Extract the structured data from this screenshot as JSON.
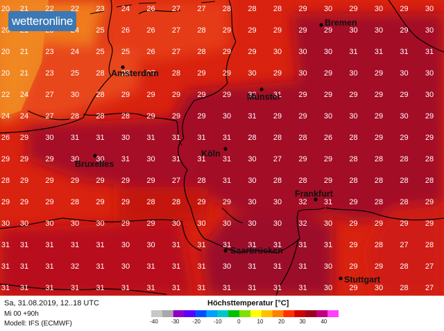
{
  "brand": {
    "logo_text": "wetteronline"
  },
  "map": {
    "columns_count": 18,
    "rows": [
      [
        "20",
        "21",
        "22",
        "22",
        "23",
        "24",
        "26",
        "27",
        "27",
        "28",
        "28",
        "28",
        "29",
        "30",
        "29",
        "30",
        "29",
        "30"
      ],
      [
        "20",
        "21",
        "23",
        "24",
        "25",
        "26",
        "26",
        "27",
        "28",
        "29",
        "29",
        "29",
        "29",
        "29",
        "30",
        "30",
        "29",
        "30"
      ],
      [
        "20",
        "21",
        "23",
        "24",
        "25",
        "25",
        "26",
        "27",
        "28",
        "29",
        "29",
        "30",
        "30",
        "30",
        "31",
        "31",
        "31",
        "31"
      ],
      [
        "20",
        "21",
        "23",
        "25",
        "28",
        "28",
        "27",
        "28",
        "29",
        "29",
        "30",
        "29",
        "30",
        "29",
        "30",
        "29",
        "30",
        "30"
      ],
      [
        "22",
        "24",
        "27",
        "30",
        "28",
        "29",
        "29",
        "29",
        "29",
        "29",
        "30",
        "31",
        "29",
        "29",
        "29",
        "29",
        "29",
        "30"
      ],
      [
        "24",
        "24",
        "27",
        "28",
        "28",
        "28",
        "29",
        "29",
        "29",
        "30",
        "31",
        "29",
        "29",
        "30",
        "30",
        "29",
        "30",
        "29"
      ],
      [
        "26",
        "29",
        "30",
        "31",
        "31",
        "30",
        "31",
        "31",
        "31",
        "31",
        "28",
        "28",
        "28",
        "26",
        "28",
        "29",
        "29",
        "29"
      ],
      [
        "29",
        "29",
        "29",
        "30",
        "30",
        "31",
        "30",
        "31",
        "31",
        "31",
        "30",
        "27",
        "29",
        "29",
        "28",
        "28",
        "28",
        "28"
      ],
      [
        "28",
        "29",
        "29",
        "29",
        "29",
        "29",
        "29",
        "27",
        "28",
        "31",
        "30",
        "28",
        "28",
        "29",
        "28",
        "28",
        "28",
        "28"
      ],
      [
        "29",
        "29",
        "29",
        "28",
        "29",
        "29",
        "28",
        "28",
        "29",
        "29",
        "30",
        "30",
        "32",
        "31",
        "29",
        "28",
        "28",
        "29"
      ],
      [
        "30",
        "30",
        "30",
        "30",
        "30",
        "29",
        "29",
        "30",
        "30",
        "30",
        "30",
        "30",
        "32",
        "30",
        "29",
        "29",
        "29",
        "29"
      ],
      [
        "31",
        "31",
        "31",
        "31",
        "31",
        "30",
        "30",
        "31",
        "31",
        "31",
        "31",
        "31",
        "31",
        "31",
        "29",
        "28",
        "27",
        "28"
      ],
      [
        "31",
        "31",
        "31",
        "32",
        "31",
        "30",
        "31",
        "31",
        "31",
        "30",
        "31",
        "31",
        "31",
        "30",
        "29",
        "29",
        "28",
        "27"
      ],
      [
        "31",
        "31",
        "31",
        "31",
        "31",
        "31",
        "31",
        "31",
        "31",
        "31",
        "31",
        "31",
        "31",
        "30",
        "29",
        "30",
        "28",
        "27"
      ]
    ],
    "cities": [
      {
        "name": "Bremen"
      },
      {
        "name": "Amsterdam"
      },
      {
        "name": "Münster"
      },
      {
        "name": "Köln"
      },
      {
        "name": "Bruxelles"
      },
      {
        "name": "Frankfurt"
      },
      {
        "name": "Saarbrücken"
      },
      {
        "name": "Stuttgart"
      }
    ]
  },
  "footer": {
    "date_line": "Sa, 31.08.2019, 12..18 UTC",
    "run_line": "Mi 00 +90h",
    "model_line": "Modell: IFS (ECMWF)",
    "legend_title": "Höchsttemperatur [°C]",
    "legend_ticks": [
      "-40",
      "-30",
      "-20",
      "-10",
      "0",
      "10",
      "20",
      "30",
      "40"
    ],
    "legend_colors": [
      "#c8c8c8",
      "#a8a8a8",
      "#8c00c8",
      "#5a00ff",
      "#0050ff",
      "#00a0ff",
      "#00c8c8",
      "#00c000",
      "#80e000",
      "#ffff00",
      "#ffc000",
      "#ff8000",
      "#ff3000",
      "#d00000",
      "#a00020",
      "#c00080",
      "#ff40ff"
    ]
  },
  "colors": {
    "orange_region": "#f07a1e",
    "red_orange": "#e63a12",
    "red": "#d9220f",
    "dark_red": "#b30d1e",
    "crimson": "#9c0b2a",
    "border_color": "#000000"
  }
}
